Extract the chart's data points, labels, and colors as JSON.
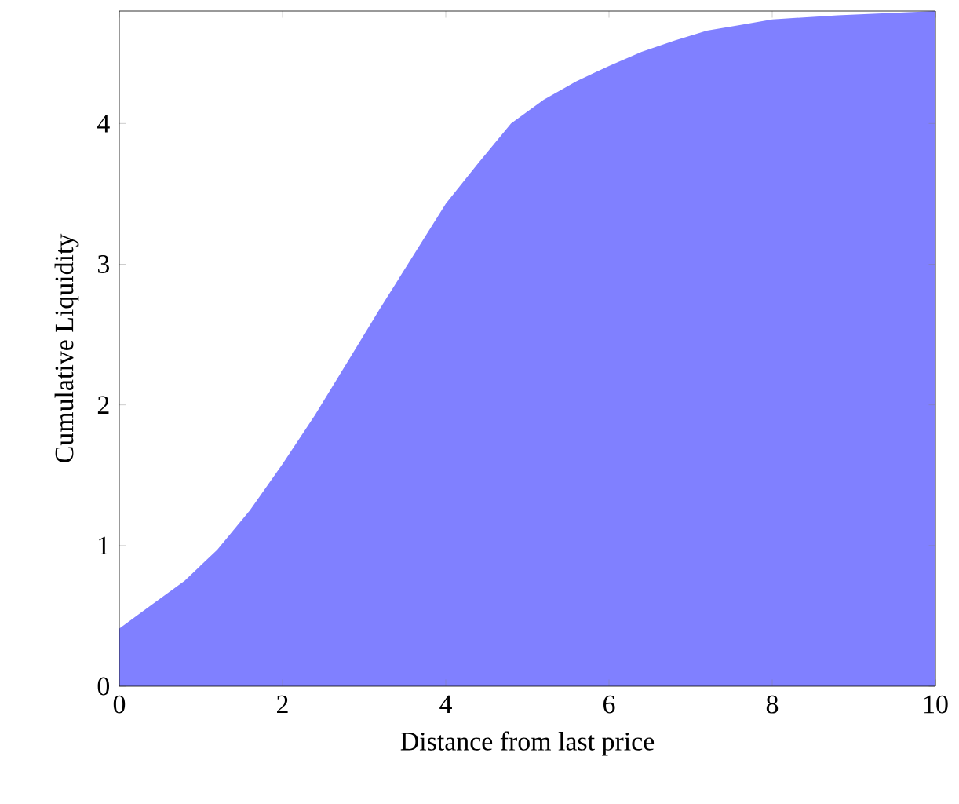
{
  "chart_data": {
    "type": "area",
    "xlabel": "Distance from last price",
    "ylabel": "Cumulative Liquidity",
    "x": [
      0,
      0.4,
      0.8,
      1.2,
      1.6,
      2.0,
      2.4,
      2.8,
      3.2,
      3.6,
      4.0,
      4.4,
      4.8,
      5.2,
      5.6,
      6.0,
      6.4,
      6.8,
      7.2,
      7.6,
      8.0,
      8.8,
      10
    ],
    "values": [
      0.41,
      0.58,
      0.75,
      0.97,
      1.25,
      1.58,
      1.93,
      2.31,
      2.69,
      3.06,
      3.43,
      3.72,
      4.0,
      4.17,
      4.3,
      4.41,
      4.51,
      4.59,
      4.66,
      4.7,
      4.74,
      4.77,
      4.8
    ],
    "color": "#8080ff",
    "xlim": [
      0,
      10
    ],
    "ylim": [
      0,
      4.8
    ],
    "xticks": [
      0,
      2,
      4,
      6,
      8,
      10
    ],
    "yticks": [
      0,
      1,
      2,
      3,
      4
    ],
    "grid": false
  }
}
